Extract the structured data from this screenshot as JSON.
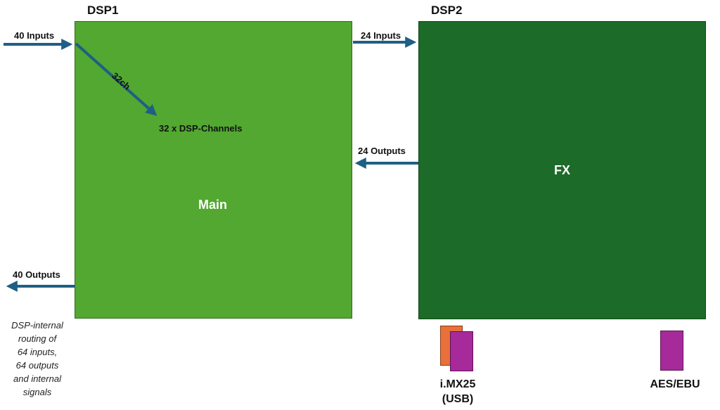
{
  "dsp1": {
    "title": "DSP1",
    "main_label": "Main",
    "channels_label": "32 x DSP-Channels",
    "diag_label": "32ch"
  },
  "dsp2": {
    "title": "DSP2",
    "center_label": "FX"
  },
  "arrows": {
    "inputs_40": "40 Inputs",
    "outputs_40": "40 Outputs",
    "inputs_24": "24 Inputs",
    "outputs_24": "24 Outputs"
  },
  "note": {
    "lines": [
      "DSP-internal",
      "routing of",
      "64 inputs,",
      "64 outputs",
      "and internal",
      "signals"
    ]
  },
  "interfaces": {
    "imx_line1": "i.MX25",
    "imx_line2": "(USB)",
    "aes": "AES/EBU"
  },
  "colors": {
    "dsp1": "#52a830",
    "dsp2": "#1c6b28",
    "arrow": "#1f5f85",
    "chip_orange": "#e8703a",
    "chip_purple": "#a62a9a"
  }
}
